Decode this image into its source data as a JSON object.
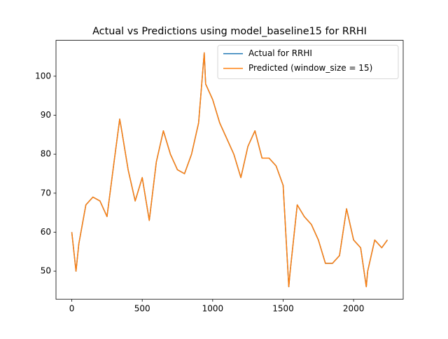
{
  "chart_data": {
    "type": "line",
    "title": "Actual vs Predictions using model_baseline15 for RRHI",
    "x": [
      0,
      30,
      50,
      100,
      150,
      200,
      250,
      300,
      340,
      350,
      400,
      450,
      500,
      550,
      600,
      650,
      700,
      750,
      800,
      850,
      900,
      940,
      950,
      1000,
      1050,
      1100,
      1150,
      1200,
      1250,
      1300,
      1350,
      1400,
      1450,
      1500,
      1540,
      1550,
      1600,
      1650,
      1700,
      1750,
      1800,
      1850,
      1900,
      1950,
      2000,
      2050,
      2090,
      2100,
      2150,
      2200,
      2240
    ],
    "series": [
      {
        "name": "Actual for RRHI",
        "color": "#1f77b4",
        "values": [
          60,
          50,
          57,
          67,
          69,
          68,
          64,
          78,
          89,
          87,
          76,
          68,
          74,
          63,
          78,
          86,
          80,
          76,
          75,
          80,
          88,
          106,
          98,
          94,
          88,
          84,
          80,
          74,
          82,
          86,
          79,
          79,
          77,
          72,
          46,
          50,
          67,
          64,
          62,
          58,
          52,
          52,
          54,
          66,
          58,
          56,
          46,
          50,
          58,
          56,
          58
        ]
      },
      {
        "name": "Predicted (window_size = 15)",
        "color": "#ff7f0e",
        "values": [
          60,
          50,
          57,
          67,
          69,
          68,
          64,
          78,
          89,
          87,
          76,
          68,
          74,
          63,
          78,
          86,
          80,
          76,
          75,
          80,
          88,
          106,
          98,
          94,
          88,
          84,
          80,
          74,
          82,
          86,
          79,
          79,
          77,
          72,
          46,
          50,
          67,
          64,
          62,
          58,
          52,
          52,
          54,
          66,
          58,
          56,
          46,
          50,
          58,
          56,
          58
        ]
      }
    ],
    "xlim": [
      -112,
      2352
    ],
    "xticks": [
      0,
      500,
      1000,
      1500,
      2000
    ],
    "ylim": [
      42.8,
      109.2
    ],
    "yticks": [
      50,
      60,
      70,
      80,
      90,
      100
    ],
    "legend": "upper right",
    "grid": false
  }
}
